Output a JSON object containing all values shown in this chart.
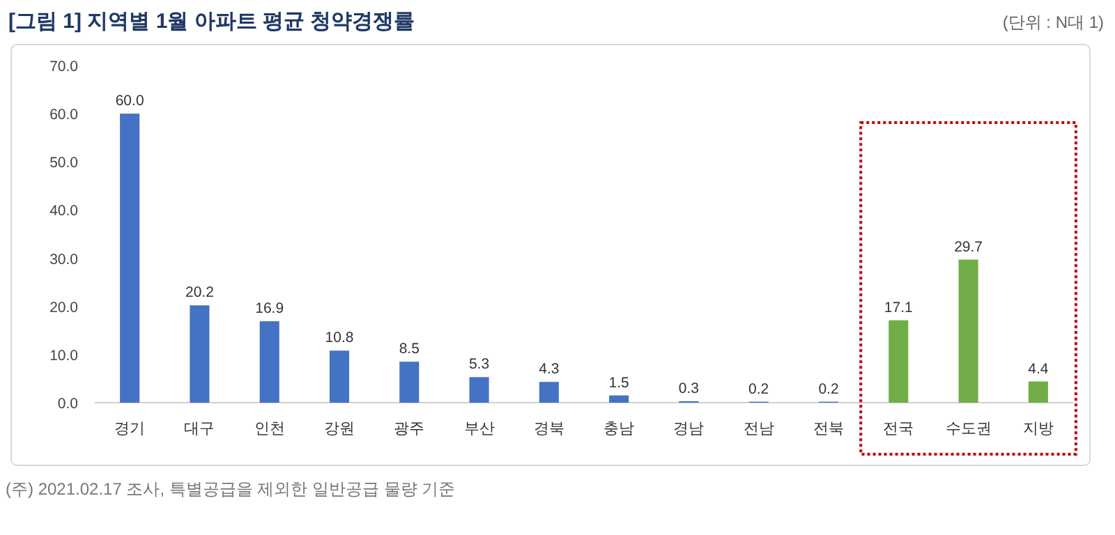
{
  "chart_data": {
    "type": "bar",
    "title": "[그림 1] 지역별 1월 아파트 평균 청약경쟁률",
    "subtitle": "(단위 : N대 1)",
    "categories": [
      "경기",
      "대구",
      "인천",
      "강원",
      "광주",
      "부산",
      "경북",
      "충남",
      "경남",
      "전남",
      "전북",
      "전국",
      "수도권",
      "지방"
    ],
    "values": [
      60.0,
      20.2,
      16.9,
      10.8,
      8.5,
      5.3,
      4.3,
      1.5,
      0.3,
      0.2,
      0.2,
      17.1,
      29.7,
      4.4
    ],
    "value_labels": [
      "60.0",
      "20.2",
      "16.9",
      "10.8",
      "8.5",
      "5.3",
      "4.3",
      "1.5",
      "0.3",
      "0.2",
      "0.2",
      "17.1",
      "29.7",
      "4.4"
    ],
    "colors": [
      "#4472c4",
      "#4472c4",
      "#4472c4",
      "#4472c4",
      "#4472c4",
      "#4472c4",
      "#4472c4",
      "#4472c4",
      "#4472c4",
      "#4472c4",
      "#4472c4",
      "#70ad47",
      "#70ad47",
      "#70ad47"
    ],
    "ylim": [
      0,
      70
    ],
    "yticks": [
      {
        "value": 0,
        "label": "0.0"
      },
      {
        "value": 10,
        "label": "10.0"
      },
      {
        "value": 20,
        "label": "20.0"
      },
      {
        "value": 30,
        "label": "30.0"
      },
      {
        "value": 40,
        "label": "40.0"
      },
      {
        "value": 50,
        "label": "50.0"
      },
      {
        "value": 60,
        "label": "60.0"
      },
      {
        "value": 70,
        "label": "70.0"
      }
    ],
    "annotations": [
      "(주) 2021.02.17 조사, 특별공급을 제외한 일반공급 물량 기준"
    ]
  }
}
